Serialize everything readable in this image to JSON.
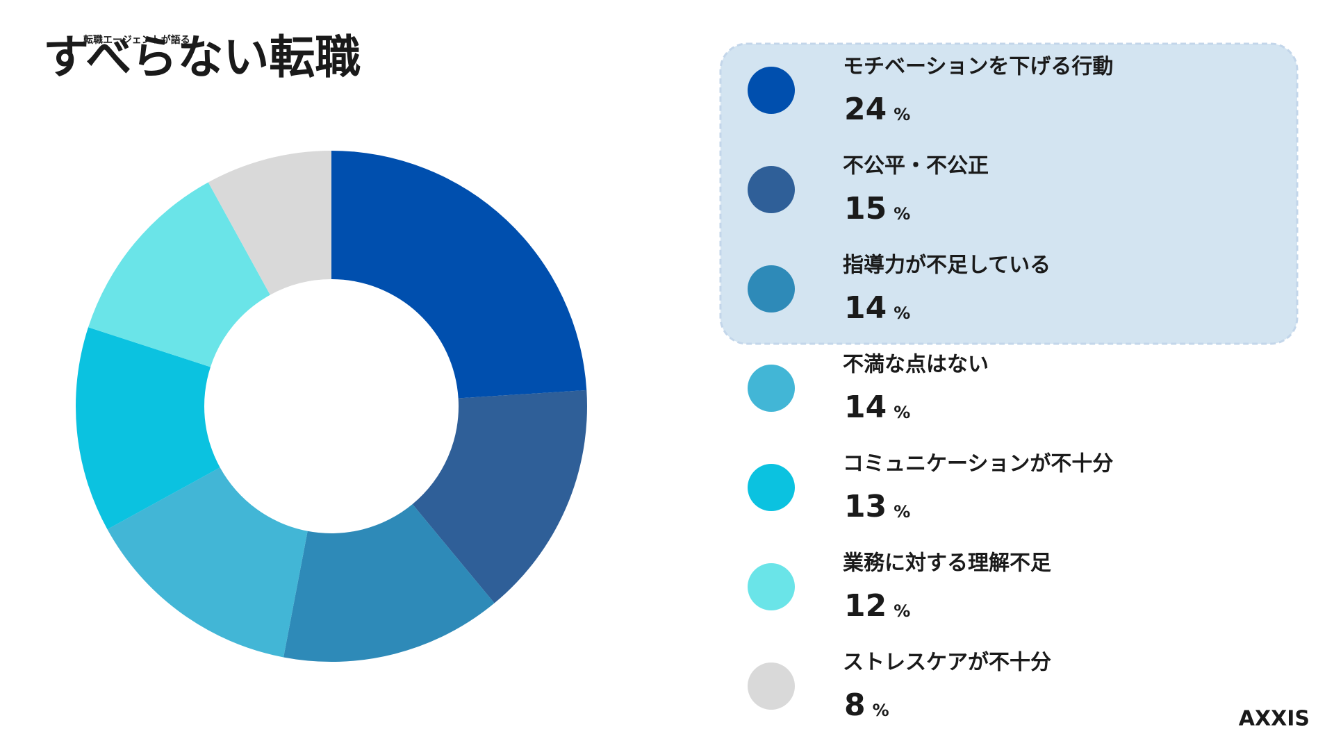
{
  "logo": {
    "subtitle": "転職エージェントが語る",
    "title": "すべらない転職"
  },
  "brand": "AXXIS",
  "chart_data": {
    "type": "pie",
    "categories": [
      "モチベーションを下げる行動",
      "不公平・不公正",
      "指導力が不足している",
      "不満な点はない",
      "コミュニケーションが不十分",
      "業務に対する理解不足",
      "ストレスケアが不十分"
    ],
    "values": [
      24,
      15,
      14,
      14,
      13,
      12,
      8
    ],
    "unit": "%",
    "colors": [
      "#004fae",
      "#2f5f98",
      "#2e8ab8",
      "#42b6d6",
      "#0bc2e0",
      "#6ae4e8",
      "#d9d9d9"
    ]
  }
}
